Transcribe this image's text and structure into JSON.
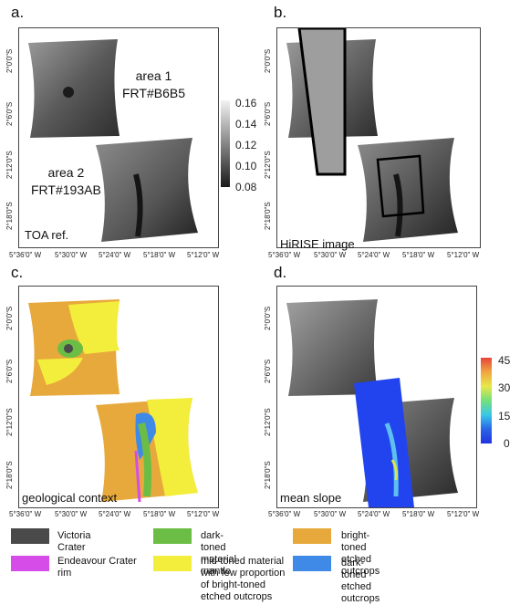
{
  "panels": {
    "a": {
      "letter": "a.",
      "caption": "TOA ref.",
      "area1_name": "area 1",
      "area1_id": "FRT#B6B5",
      "area2_name": "area 2",
      "area2_id": "FRT#193AB"
    },
    "b": {
      "letter": "b.",
      "caption": "HiRISE image"
    },
    "c": {
      "letter": "c.",
      "caption": "geological context"
    },
    "d": {
      "letter": "d.",
      "caption": "mean slope"
    }
  },
  "lat_ticks": [
    "2°0'0\"S",
    "2°6'0\"S",
    "2°12'0\"S",
    "2°18'0\"S"
  ],
  "lon_ticks": [
    "5°36'0\" W",
    "5°30'0\" W",
    "5°24'0\" W",
    "5°18'0\" W",
    "5°12'0\" W"
  ],
  "toa_colorbar": {
    "ticks": [
      "0.16",
      "0.14",
      "0.12",
      "0.10",
      "0.08"
    ],
    "range": [
      0.08,
      0.16
    ]
  },
  "slope_colorbar": {
    "ticks": [
      "45",
      "30",
      "15",
      "0"
    ],
    "range": [
      0,
      45
    ]
  },
  "legend": {
    "items": [
      {
        "label": "Victoria Crater",
        "color": "#4a4a4a"
      },
      {
        "label": "dark-toned material mantle",
        "color": "#6cbd45"
      },
      {
        "label": "bright-toned etched outcrops",
        "color": "#e7a93c"
      },
      {
        "label": "Endeavour Crater rim",
        "color": "#d54ce8"
      },
      {
        "label": "mid-toned material with few proportion of bright-toned etched outcrops",
        "color": "#f2ee3b"
      },
      {
        "label": "dark-toned etched outcrops",
        "color": "#3f8ae6"
      }
    ]
  }
}
